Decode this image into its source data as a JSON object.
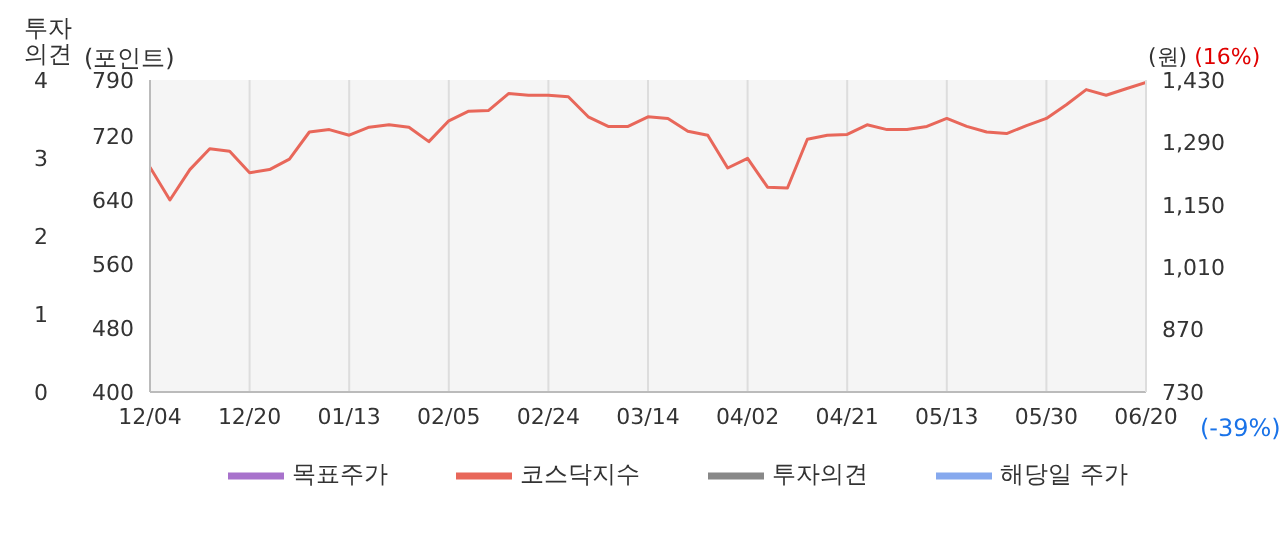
{
  "chart_data": {
    "type": "line",
    "categories": [
      "12/04",
      null,
      null,
      null,
      null,
      "12/20",
      null,
      null,
      null,
      null,
      "01/13",
      null,
      null,
      null,
      null,
      "02/05",
      null,
      null,
      null,
      null,
      "02/24",
      null,
      null,
      null,
      null,
      "03/14",
      null,
      null,
      null,
      null,
      "04/02",
      null,
      null,
      null,
      null,
      "04/21",
      null,
      null,
      null,
      null,
      "05/13",
      null,
      null,
      null,
      null,
      "05/30",
      null,
      null,
      null,
      null,
      "06/20"
    ],
    "series": [
      {
        "name": "코스닥지수",
        "color": "#e8675a",
        "values": [
          681,
          640,
          678,
          704,
          701,
          674,
          678,
          691,
          725,
          728,
          721,
          731,
          734,
          731,
          713,
          739,
          751,
          752,
          773,
          771,
          771,
          769,
          744,
          732,
          732,
          744,
          742,
          726,
          721,
          680,
          692,
          656,
          655,
          716,
          721,
          722,
          734,
          728,
          728,
          732,
          742,
          732,
          725,
          723,
          733,
          742,
          759,
          778,
          771,
          779,
          787
        ]
      },
      {
        "name": "투자의견",
        "color": "#888888",
        "values": [
          null,
          null,
          null,
          null,
          null,
          null,
          null,
          null,
          null,
          null,
          null,
          null,
          null,
          null,
          null,
          null,
          null,
          null,
          null,
          null,
          null,
          null,
          null,
          null,
          null,
          null,
          null,
          null,
          null,
          null,
          null,
          null,
          null,
          null,
          null,
          null,
          null,
          null,
          null,
          null,
          null,
          null,
          null,
          null,
          null,
          null,
          null,
          null,
          null,
          null,
          null
        ]
      },
      {
        "name": "목표주가",
        "color": "#a872cc",
        "values": [
          null,
          null,
          null,
          null,
          null,
          null,
          null,
          null,
          null,
          null,
          null,
          null,
          null,
          null,
          null,
          null,
          null,
          null,
          null,
          null,
          null,
          null,
          null,
          null,
          null,
          null,
          null,
          null,
          null,
          null,
          null,
          null,
          null,
          null,
          null,
          null,
          null,
          null,
          null,
          null,
          null,
          null,
          null,
          null,
          null,
          null,
          null,
          null,
          null,
          null,
          null
        ]
      },
      {
        "name": "해당일 주가",
        "color": "#86a9ee",
        "values": [
          null,
          null,
          null,
          null,
          null,
          null,
          null,
          null,
          null,
          null,
          null,
          null,
          null,
          null,
          null,
          null,
          null,
          null,
          null,
          null,
          null,
          null,
          null,
          null,
          null,
          null,
          null,
          null,
          null,
          null,
          null,
          null,
          null,
          null,
          null,
          null,
          null,
          null,
          null,
          null,
          null,
          null,
          null,
          null,
          null,
          null,
          null,
          null,
          null,
          null,
          null
        ]
      }
    ],
    "ylabel": "(포인트)",
    "y2label": "투자의견",
    "y3label": "(원)",
    "ylim": [
      400,
      790
    ],
    "yticks": [
      400,
      480,
      560,
      640,
      720,
      790
    ],
    "y2lim": [
      0,
      4
    ],
    "y2ticks": [
      0,
      1,
      2,
      3,
      4
    ],
    "y3lim": [
      730,
      1430
    ],
    "y3ticks": [
      730,
      {
        "value": 870,
        "label": "870"
      },
      {
        "value": 1010,
        "label": "1,010"
      },
      {
        "value": 1150,
        "label": "1,150"
      },
      {
        "value": 1290,
        "label": "1,290"
      },
      {
        "value": 1430,
        "label": "1,430"
      }
    ],
    "annotations": [
      "(16%)",
      "(-39%)"
    ],
    "grid": "x",
    "legend": "bottom",
    "marker": "none",
    "line_style": "solid"
  }
}
